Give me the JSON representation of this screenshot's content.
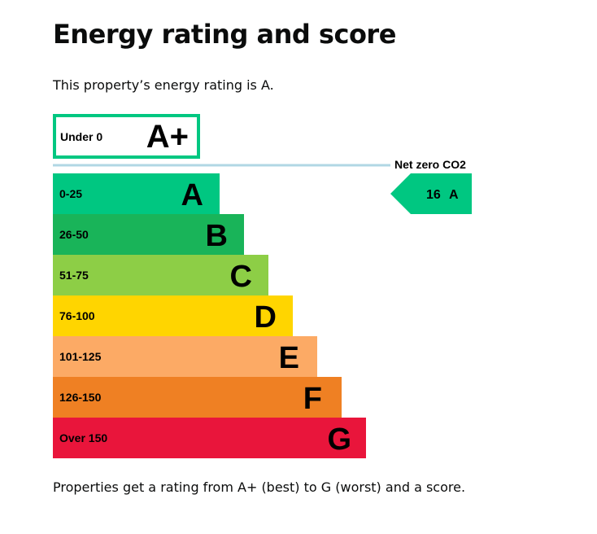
{
  "page": {
    "title": "Energy rating and score",
    "intro": "This property’s energy rating is A.",
    "footer": "Properties get a rating from A+ (best) to G (worst) and a score."
  },
  "rating_chart": {
    "bands": [
      {
        "range": "Under 0",
        "letter": "A+",
        "color": "#ffffff",
        "border": "#00c781"
      },
      {
        "range": "0-25",
        "letter": "A",
        "color": "#00c781"
      },
      {
        "range": "26-50",
        "letter": "B",
        "color": "#19b459"
      },
      {
        "range": "51-75",
        "letter": "C",
        "color": "#8dce46"
      },
      {
        "range": "76-100",
        "letter": "D",
        "color": "#ffd500"
      },
      {
        "range": "101-125",
        "letter": "E",
        "color": "#fcaa65"
      },
      {
        "range": "126-150",
        "letter": "F",
        "color": "#ef8023"
      },
      {
        "range": "Over 150",
        "letter": "G",
        "color": "#e9153b"
      }
    ],
    "net_zero_label": "Net zero CO2",
    "net_zero_line_color": "#b1d7e4",
    "current": {
      "score": "16",
      "letter": "A",
      "color": "#00c781"
    }
  }
}
